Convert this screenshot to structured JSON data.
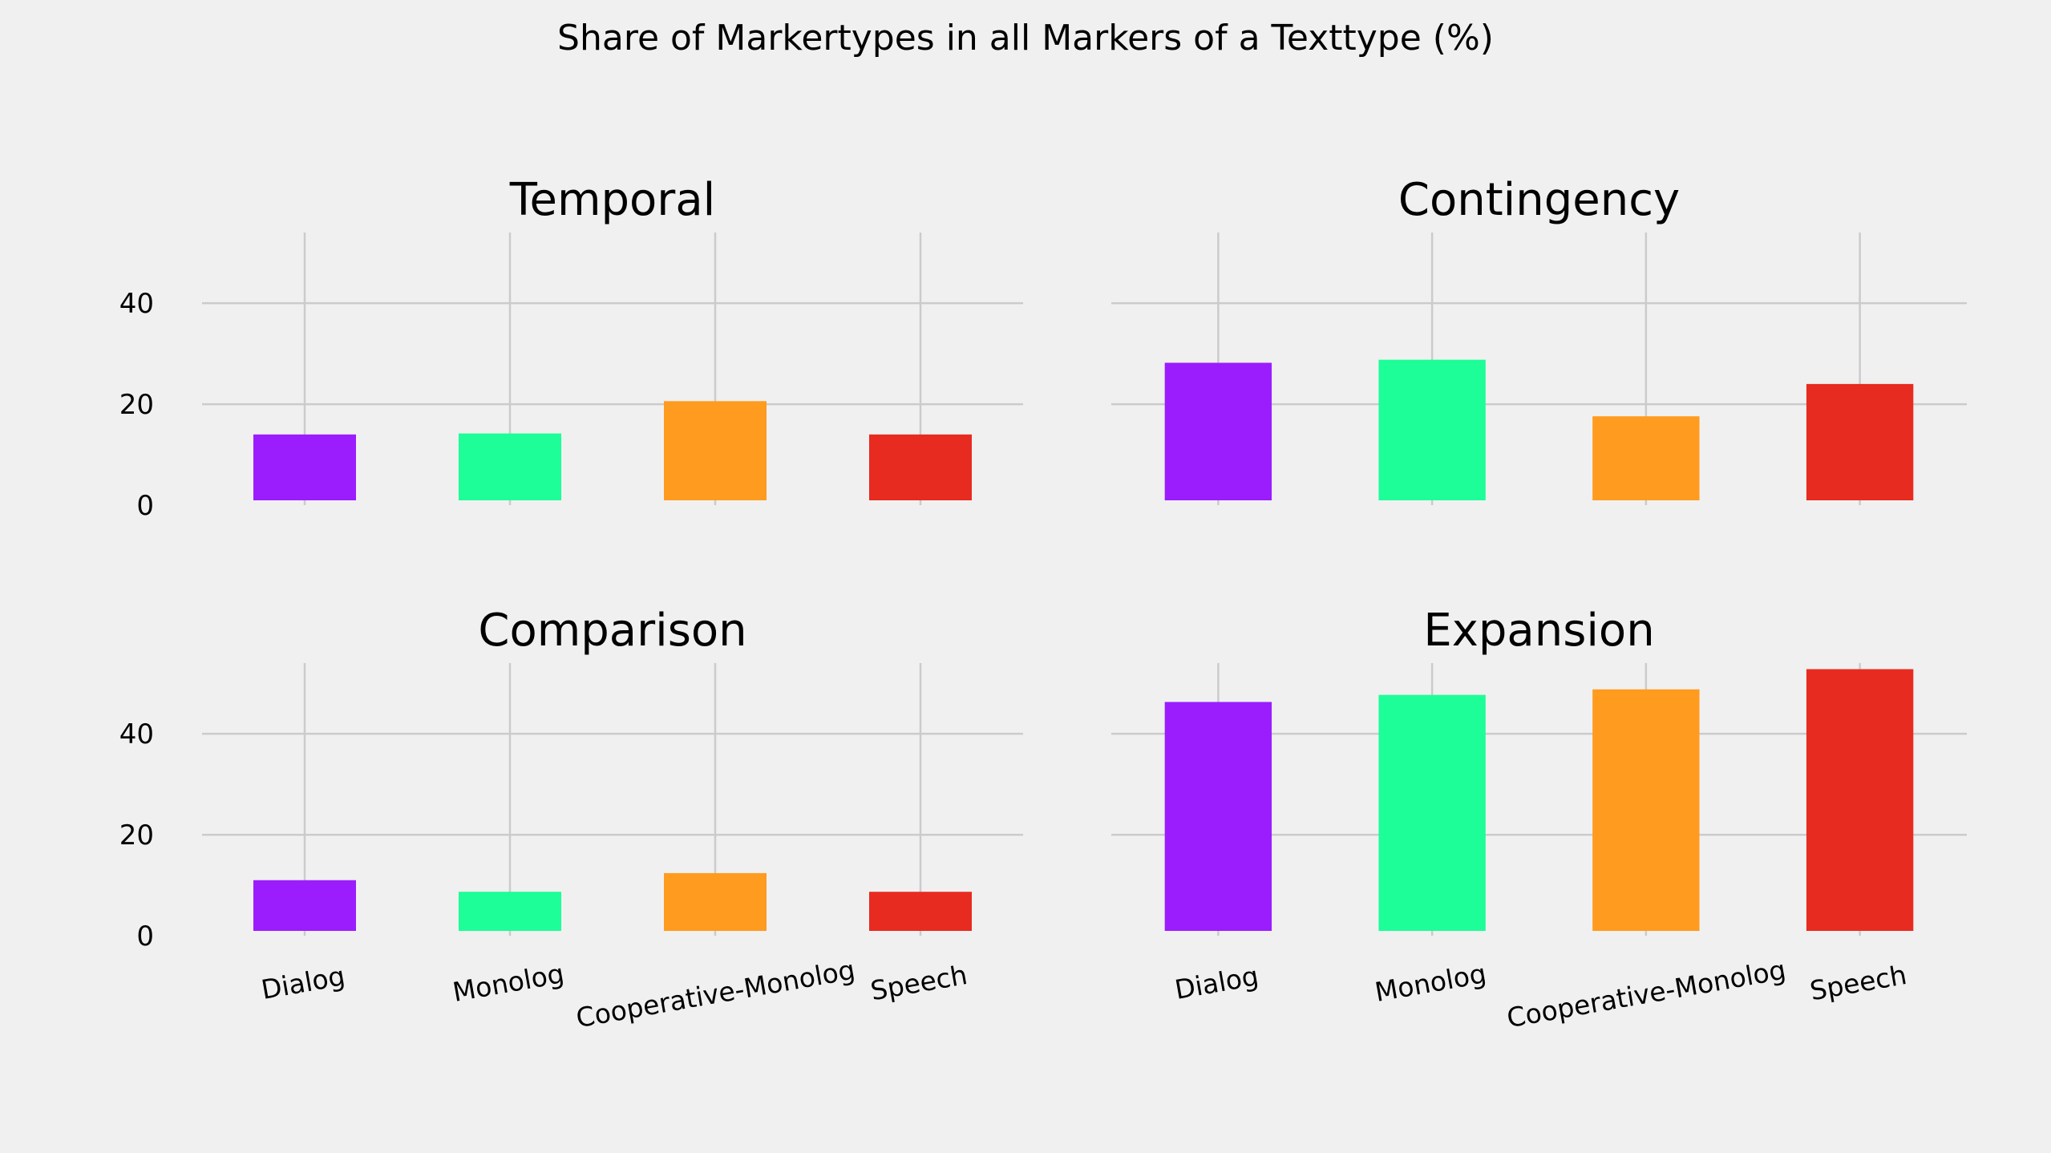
{
  "chart_data": {
    "type": "bar",
    "title": "Share of Markertypes in all Markers of a Texttype (%)",
    "categories": [
      "Dialog",
      "Monolog",
      "Cooperative-Monolog",
      "Speech"
    ],
    "colors": [
      "#9b1dfd",
      "#1dfd98",
      "#ff9b1f",
      "#e72b20"
    ],
    "ylim": [
      0,
      54
    ],
    "yticks": [
      "0",
      "20",
      "40"
    ],
    "grid": true,
    "panels": [
      {
        "title": "Temporal",
        "values": [
          14.0,
          14.2,
          20.6,
          14.0
        ]
      },
      {
        "title": "Contingency",
        "values": [
          28.2,
          28.8,
          17.6,
          24.0
        ]
      },
      {
        "title": "Comparison",
        "values": [
          11.0,
          8.7,
          12.4,
          8.7
        ]
      },
      {
        "title": "Expansion",
        "values": [
          46.3,
          47.7,
          48.8,
          52.8
        ]
      }
    ]
  }
}
